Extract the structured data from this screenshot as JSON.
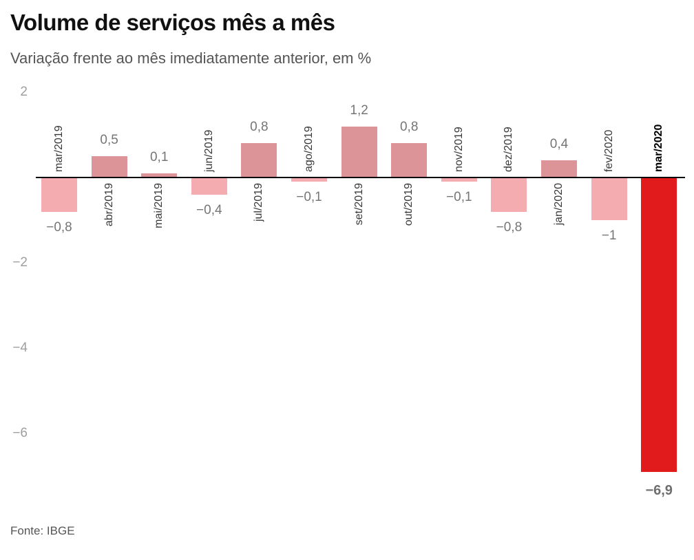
{
  "header": {
    "title": "Volume de serviços mês a mês",
    "subtitle": "Variação frente ao mês imediatamente anterior, em %"
  },
  "footer": {
    "source": "Fonte: IBGE"
  },
  "colors": {
    "positive_bar": "#dd9499",
    "negative_bar": "#f4acb1",
    "highlight_bar": "#e11b1b",
    "value_label": "#757575",
    "month_label": "#383838",
    "axis_tick_label": "#9e9e9e",
    "axis_line": "#000000"
  },
  "chart_data": {
    "type": "bar",
    "title": "Volume de serviços mês a mês",
    "subtitle": "Variação frente ao mês imediatamente anterior, em %",
    "source": "Fonte: IBGE",
    "unit": "%",
    "categories": [
      "mar/2019",
      "abr/2019",
      "mai/2019",
      "jun/2019",
      "jul/2019",
      "ago/2019",
      "set/2019",
      "out/2019",
      "nov/2019",
      "dez/2019",
      "jan/2020",
      "fev/2020",
      "mar/2020"
    ],
    "values": [
      -0.8,
      0.5,
      0.1,
      -0.4,
      0.8,
      -0.1,
      1.2,
      0.8,
      -0.1,
      -0.8,
      0.4,
      -1,
      -6.9
    ],
    "value_labels": [
      "−0,8",
      "0,5",
      "0,1",
      "−0,4",
      "0,8",
      "−0,1",
      "1,2",
      "0,8",
      "−0,1",
      "−0,8",
      "0,4",
      "−1",
      "−6,9"
    ],
    "highlight_index": 12,
    "xlabel": "",
    "ylabel": "",
    "ylim": [
      -7.5,
      2
    ],
    "yticks": [
      2,
      -2,
      -4,
      -6
    ],
    "ytick_labels": [
      "2",
      "−2",
      "−4",
      "−6"
    ],
    "grid": false,
    "legend": "none"
  }
}
